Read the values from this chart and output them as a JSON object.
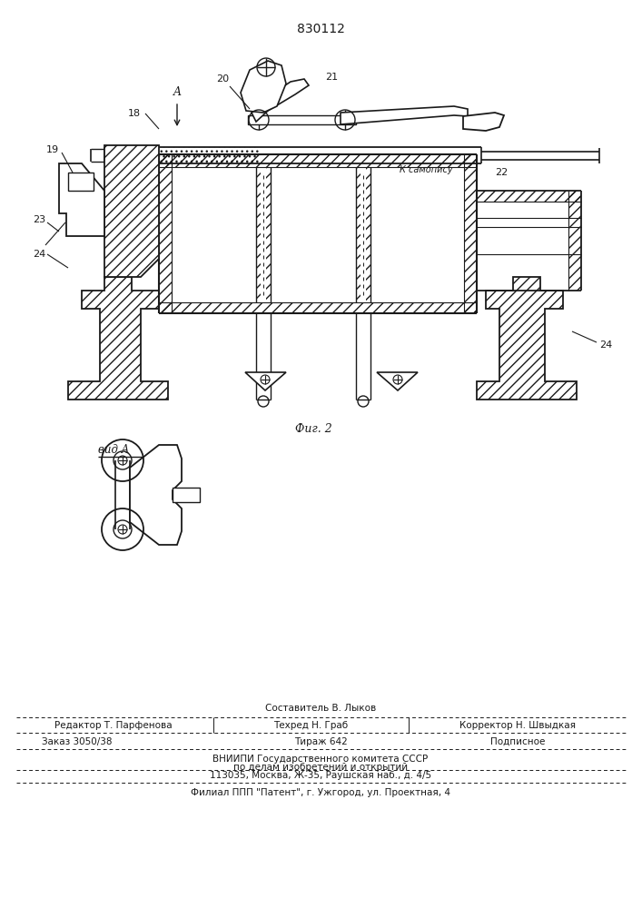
{
  "patent_number": "830112",
  "fig2_label": "Фиг. 2",
  "view_label": "вид A",
  "footer_line1_center_top": "Составитель В. Лыков",
  "footer_line1_left": "Редактор Т. Парфенова",
  "footer_line1_center": "Техред Н. Граб",
  "footer_line1_right": "Корректор Н. Швыдкая",
  "footer_line2_left": "Заказ 3050/38",
  "footer_line2_center": "Тираж 642",
  "footer_line2_right": "Подписное",
  "footer_line3": "ВНИИПИ Государственного комитета СССР",
  "footer_line4": "по делам изобретений и открытий",
  "footer_line5": "113035, Москва, Ж-35, Раушская наб., д. 4/5",
  "footer_line6": "Филиал ППП \"Патент\", г. Ужгород, ул. Проектная, 4",
  "label_18": "18",
  "label_19": "19",
  "label_20": "20",
  "label_21": "21",
  "label_22": "22",
  "label_23": "23",
  "label_24a": "24",
  "label_24b": "24",
  "label_k_samopisu": "К самопису",
  "bg_color": "#ffffff",
  "line_color": "#1a1a1a"
}
